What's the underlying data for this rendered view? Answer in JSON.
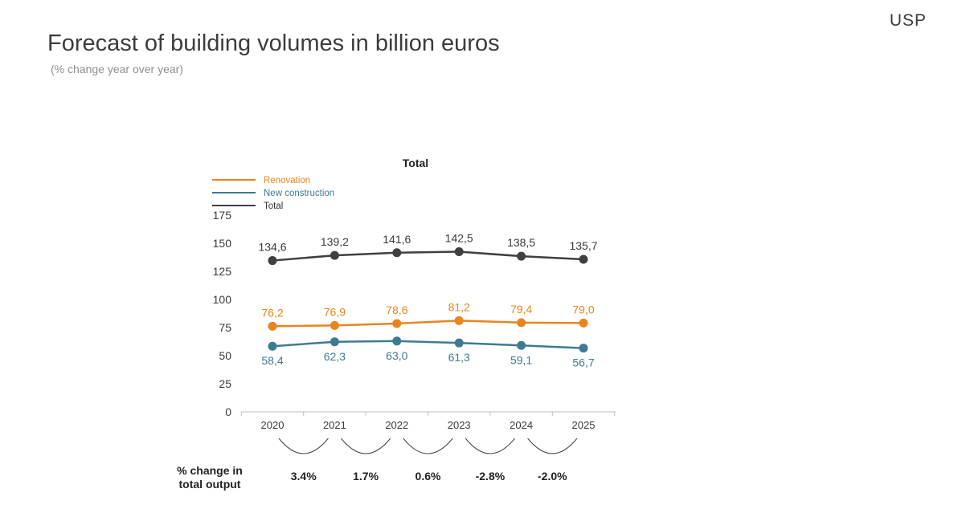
{
  "header": {
    "logo": "USP",
    "title": "Forecast of building volumes in billion euros",
    "subtitle": "(% change year over year)"
  },
  "chart_data": {
    "type": "line",
    "title": "Total",
    "categories": [
      "2020",
      "2021",
      "2022",
      "2023",
      "2024",
      "2025"
    ],
    "ylim": [
      0,
      175
    ],
    "yticks": [
      0,
      25,
      50,
      75,
      100,
      125,
      150,
      175
    ],
    "grid": false,
    "legend_position": "top-left",
    "series": [
      {
        "name": "Renovation",
        "color": "#e8851c",
        "values": [
          76.2,
          76.9,
          78.6,
          81.2,
          79.4,
          79.0
        ],
        "labels": [
          "76,2",
          "76,9",
          "78,6",
          "81,2",
          "79,4",
          "79,0"
        ],
        "label_position": "above"
      },
      {
        "name": "New construction",
        "color": "#3e7a93",
        "values": [
          58.4,
          62.3,
          63.0,
          61.3,
          59.1,
          56.7
        ],
        "labels": [
          "58,4",
          "62,3",
          "63,0",
          "61,3",
          "59,1",
          "56,7"
        ],
        "label_position": "below"
      },
      {
        "name": "Total",
        "color": "#404040",
        "values": [
          134.6,
          139.2,
          141.6,
          142.5,
          138.5,
          135.7
        ],
        "labels": [
          "134,6",
          "139,2",
          "141,6",
          "142,5",
          "138,5",
          "135,7"
        ],
        "label_position": "above"
      }
    ],
    "change": {
      "label_line1": "% change in",
      "label_line2": "total output",
      "values": [
        "3.4%",
        "1.7%",
        "0.6%",
        "-2.8%",
        "-2.0%"
      ]
    }
  }
}
